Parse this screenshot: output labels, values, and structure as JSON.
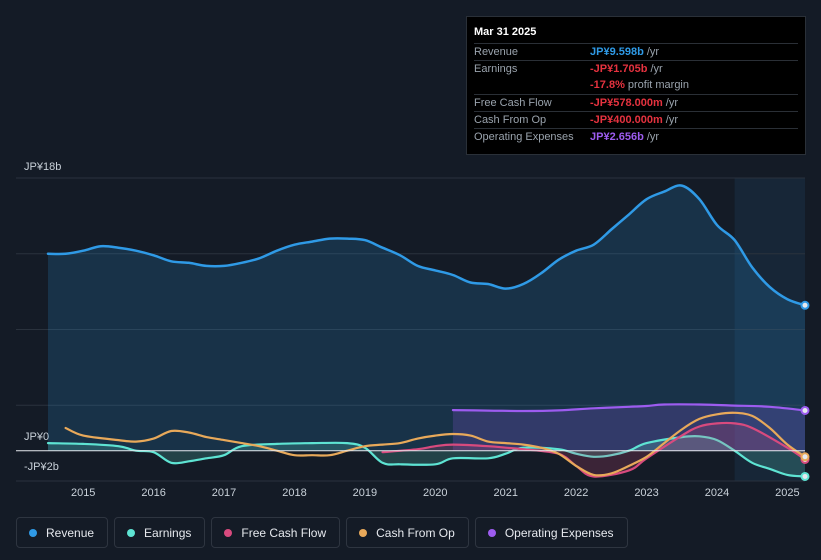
{
  "tooltip": {
    "date": "Mar 31 2025",
    "rows": [
      {
        "label": "Revenue",
        "value": "JP¥9.598b",
        "suffix": "/yr",
        "color": "#2f9ae6"
      },
      {
        "label": "Earnings",
        "value": "-JP¥1.705b",
        "suffix": "/yr",
        "color": "#e5323f"
      },
      {
        "label": "",
        "value": "-17.8%",
        "suffix": "profit margin",
        "color": "#e5323f"
      },
      {
        "label": "Free Cash Flow",
        "value": "-JP¥578.000m",
        "suffix": "/yr",
        "color": "#e5323f"
      },
      {
        "label": "Cash From Op",
        "value": "-JP¥400.000m",
        "suffix": "/yr",
        "color": "#e5323f"
      },
      {
        "label": "Operating Expenses",
        "value": "JP¥2.656b",
        "suffix": "/yr",
        "color": "#9d5cf0"
      }
    ]
  },
  "legend": [
    {
      "label": "Revenue",
      "color": "#2f9ae6"
    },
    {
      "label": "Earnings",
      "color": "#5ee4d3"
    },
    {
      "label": "Free Cash Flow",
      "color": "#d84a7e"
    },
    {
      "label": "Cash From Op",
      "color": "#e8a95a"
    },
    {
      "label": "Operating Expenses",
      "color": "#9d5cf0"
    }
  ],
  "chart_data": {
    "type": "area",
    "y_labels": {
      "top": "JP¥18b",
      "zero": "JP¥0",
      "bottom": "-JP¥2b"
    },
    "ylim": [
      -2,
      18
    ],
    "xlim": [
      2014.5,
      2025.25
    ],
    "x_ticks": [
      {
        "year": 2015,
        "label": "2015"
      },
      {
        "year": 2016,
        "label": "2016"
      },
      {
        "year": 2017,
        "label": "2017"
      },
      {
        "year": 2018,
        "label": "2018"
      },
      {
        "year": 2019,
        "label": "2019"
      },
      {
        "year": 2020,
        "label": "2020"
      },
      {
        "year": 2021,
        "label": "2021"
      },
      {
        "year": 2022,
        "label": "2022"
      },
      {
        "year": 2023,
        "label": "2023"
      },
      {
        "year": 2024,
        "label": "2024"
      },
      {
        "year": 2025,
        "label": "2025"
      }
    ],
    "highlight_start": 2024.25,
    "series": [
      {
        "name": "Revenue",
        "key": "revenue",
        "color": "#2f9ae6",
        "fill": true,
        "x": [
          2014.5,
          2014.75,
          2015.0,
          2015.25,
          2015.5,
          2015.75,
          2016.0,
          2016.25,
          2016.5,
          2016.75,
          2017.0,
          2017.25,
          2017.5,
          2017.75,
          2018.0,
          2018.25,
          2018.5,
          2018.75,
          2019.0,
          2019.25,
          2019.5,
          2019.75,
          2020.0,
          2020.25,
          2020.5,
          2020.75,
          2021.0,
          2021.25,
          2021.5,
          2021.75,
          2022.0,
          2022.25,
          2022.5,
          2022.75,
          2023.0,
          2023.25,
          2023.5,
          2023.75,
          2024.0,
          2024.25,
          2024.5,
          2024.75,
          2025.0,
          2025.25
        ],
        "values": [
          13.0,
          13.0,
          13.2,
          13.5,
          13.4,
          13.2,
          12.9,
          12.5,
          12.4,
          12.2,
          12.2,
          12.4,
          12.7,
          13.2,
          13.6,
          13.8,
          14.0,
          14.0,
          13.9,
          13.4,
          12.9,
          12.2,
          11.9,
          11.6,
          11.1,
          11.0,
          10.7,
          11.0,
          11.7,
          12.6,
          13.2,
          13.6,
          14.6,
          15.6,
          16.6,
          17.1,
          17.5,
          16.6,
          14.9,
          13.9,
          12.1,
          10.8,
          10.0,
          9.6
        ]
      },
      {
        "name": "Operating Expenses",
        "key": "opex",
        "color": "#9d5cf0",
        "fill": true,
        "x": [
          2020.25,
          2020.75,
          2021.25,
          2021.75,
          2022.25,
          2022.75,
          2023.0,
          2023.25,
          2023.75,
          2024.25,
          2024.75,
          2025.25
        ],
        "values": [
          2.68,
          2.65,
          2.62,
          2.66,
          2.8,
          2.9,
          2.95,
          3.05,
          3.05,
          2.98,
          2.9,
          2.656
        ]
      },
      {
        "name": "Earnings",
        "key": "earnings",
        "color": "#5ee4d3",
        "fill": true,
        "x": [
          2014.5,
          2015.0,
          2015.5,
          2015.75,
          2016.0,
          2016.25,
          2016.5,
          2016.75,
          2017.0,
          2017.25,
          2017.75,
          2018.25,
          2018.75,
          2019.0,
          2019.25,
          2019.5,
          2020.0,
          2020.25,
          2020.75,
          2021.0,
          2021.25,
          2021.75,
          2022.0,
          2022.25,
          2022.5,
          2022.75,
          2023.0,
          2023.5,
          2023.75,
          2024.0,
          2024.25,
          2024.5,
          2024.75,
          2025.0,
          2025.25
        ],
        "values": [
          0.5,
          0.45,
          0.3,
          0.0,
          -0.1,
          -0.8,
          -0.7,
          -0.5,
          -0.3,
          0.3,
          0.45,
          0.5,
          0.5,
          0.2,
          -0.8,
          -0.9,
          -0.9,
          -0.5,
          -0.5,
          -0.2,
          0.2,
          0.1,
          -0.2,
          -0.4,
          -0.3,
          0.0,
          0.5,
          0.9,
          0.95,
          0.7,
          0.0,
          -0.8,
          -1.2,
          -1.6,
          -1.7
        ]
      },
      {
        "name": "Free Cash Flow",
        "key": "fcf",
        "color": "#d84a7e",
        "fill": true,
        "x": [
          2019.25,
          2019.75,
          2020.0,
          2020.25,
          2020.75,
          2021.0,
          2021.25,
          2021.75,
          2022.0,
          2022.25,
          2022.75,
          2023.0,
          2023.5,
          2023.75,
          2024.0,
          2024.25,
          2024.5,
          2025.0,
          2025.25
        ],
        "values": [
          -0.1,
          0.1,
          0.3,
          0.4,
          0.3,
          0.2,
          0.1,
          -0.2,
          -1.0,
          -1.7,
          -1.3,
          -0.5,
          1.0,
          1.6,
          1.8,
          1.8,
          1.5,
          0.2,
          -0.578
        ]
      },
      {
        "name": "Cash From Op",
        "key": "cfo",
        "color": "#e8a95a",
        "fill": false,
        "x": [
          2014.75,
          2015.0,
          2015.5,
          2015.75,
          2016.0,
          2016.25,
          2016.5,
          2016.75,
          2017.0,
          2017.25,
          2017.5,
          2017.75,
          2018.0,
          2018.25,
          2018.5,
          2018.75,
          2019.0,
          2019.25,
          2019.5,
          2019.75,
          2020.0,
          2020.25,
          2020.5,
          2020.75,
          2021.0,
          2021.25,
          2021.5,
          2021.75,
          2022.0,
          2022.25,
          2022.5,
          2022.75,
          2023.0,
          2023.25,
          2023.5,
          2023.75,
          2024.0,
          2024.25,
          2024.5,
          2024.75,
          2025.0,
          2025.25
        ],
        "values": [
          1.5,
          1.0,
          0.7,
          0.6,
          0.8,
          1.3,
          1.2,
          0.9,
          0.7,
          0.5,
          0.3,
          0.0,
          -0.3,
          -0.3,
          -0.3,
          0.0,
          0.3,
          0.4,
          0.5,
          0.8,
          1.0,
          1.1,
          1.0,
          0.6,
          0.5,
          0.4,
          0.2,
          -0.2,
          -1.0,
          -1.6,
          -1.5,
          -1.0,
          -0.4,
          0.5,
          1.4,
          2.1,
          2.4,
          2.5,
          2.3,
          1.5,
          0.4,
          -0.4
        ]
      }
    ]
  }
}
